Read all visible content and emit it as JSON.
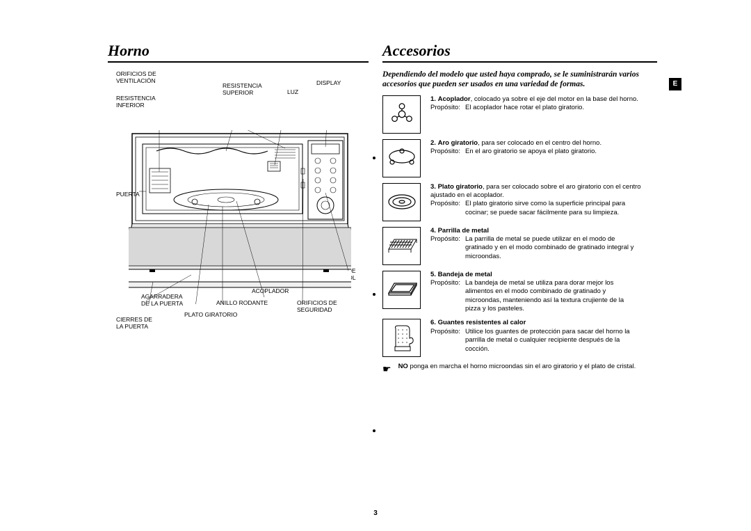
{
  "pageNumber": "3",
  "langBadge": "E",
  "leftTitle": "Horno",
  "rightTitle": "Accesorios",
  "intro": "Dependiendo del modelo que usted haya comprado, se le suministrarán varios accesorios que pueden ser usados en una variedad de formas.",
  "labels": {
    "ventOrifices": "ORIFICIOS DE\nVENTILACIÓN",
    "lowerResistor": "RESISTENCIA\nINFERIOR",
    "door": "PUERTA",
    "doorHandle": "AGARRADERA\nDE LA PUERTA",
    "doorLatches": "CIERRES DE\nLA PUERTA",
    "upperResistor": "RESISTENCIA\nSUPERIOR",
    "light": "LUZ",
    "display": "DISPLAY",
    "controlPanel": "PANEL DE\nCONTROL",
    "rollerRing": "ANILLO RODANTE",
    "turntable": "PLATO GIRATORIO",
    "coupler": "ACOPLADOR",
    "safetyHoles": "ORIFICIOS DE\nSEGURIDAD"
  },
  "propLabel": "Propósito:",
  "accessories": [
    {
      "num": "1.",
      "name": "Acoplador",
      "desc": ", colocado ya sobre el eje del motor en la base del horno.",
      "purpose": "El acoplador hace rotar el plato giratorio."
    },
    {
      "num": "2.",
      "name": "Aro giratorio",
      "desc": ", para ser colocado en el centro del horno.",
      "purpose": "En el aro giratorio se apoya el plato giratorio."
    },
    {
      "num": "3.",
      "name": "Plato giratorio",
      "desc": ", para ser colocado sobre el aro giratorio con el centro ajustado en el acoplador.",
      "purpose": "El plato giratorio sirve como la superficie principal para cocinar; se puede sacar fácilmente para su limpieza."
    },
    {
      "num": "4.",
      "name": "Parrilla de metal",
      "desc": "",
      "purpose": "La parrilla de metal se puede utilizar en el modo de gratinado y en el modo combinado de gratinado integral y microondas."
    },
    {
      "num": "5.",
      "name": "Bandeja de metal",
      "desc": "",
      "purpose": "La bandeja de metal se utiliza para dorar mejor los alimentos en el modo combinado de gratinado y microondas, manteniendo así la textura crujiente de la pizza y los pasteles."
    },
    {
      "num": "6.",
      "name": "Guantes resistentes al calor",
      "desc": "",
      "purpose": "Utilice los guantes de protección para sacar del horno la parrilla de metal o cualquier recipiente después de la cocción."
    }
  ],
  "warningBold": "NO",
  "warningRest": " ponga en marcha el horno microondas sin el aro giratorio y el plato de cristal."
}
